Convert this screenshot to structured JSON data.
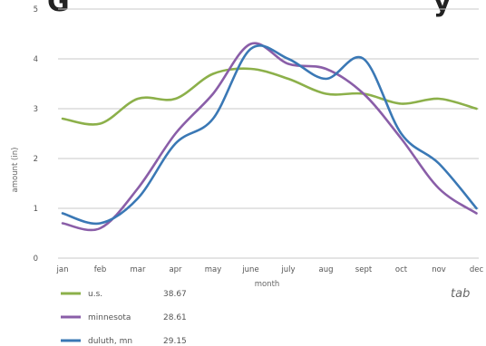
{
  "chart_data": {
    "type": "line",
    "title": "",
    "xlabel": "month",
    "ylabel": "amount (in)",
    "ylim": [
      0,
      5
    ],
    "yticks": [
      "0",
      "1",
      "2",
      "3",
      "4",
      "5"
    ],
    "categories": [
      "jan",
      "feb",
      "mar",
      "apr",
      "may",
      "june",
      "july",
      "aug",
      "sept",
      "oct",
      "nov",
      "dec"
    ],
    "grid": true,
    "legend_position": "bottom-left",
    "series": [
      {
        "name": "u.s.",
        "total": "38.67",
        "color": "#8cb04a",
        "values": [
          2.8,
          2.7,
          3.2,
          3.2,
          3.7,
          3.8,
          3.6,
          3.3,
          3.3,
          3.1,
          3.2,
          3.0
        ]
      },
      {
        "name": "minnesota",
        "total": "28.61",
        "color": "#8a5ea8",
        "values": [
          0.7,
          0.6,
          1.4,
          2.5,
          3.3,
          4.3,
          3.9,
          3.8,
          3.3,
          2.4,
          1.4,
          0.9
        ]
      },
      {
        "name": "duluth, mn",
        "total": "29.15",
        "color": "#3a78b5",
        "values": [
          0.9,
          0.7,
          1.2,
          2.3,
          2.8,
          4.2,
          4.0,
          3.6,
          4.0,
          2.5,
          1.9,
          1.0
        ]
      }
    ]
  },
  "corner_note": "tab"
}
